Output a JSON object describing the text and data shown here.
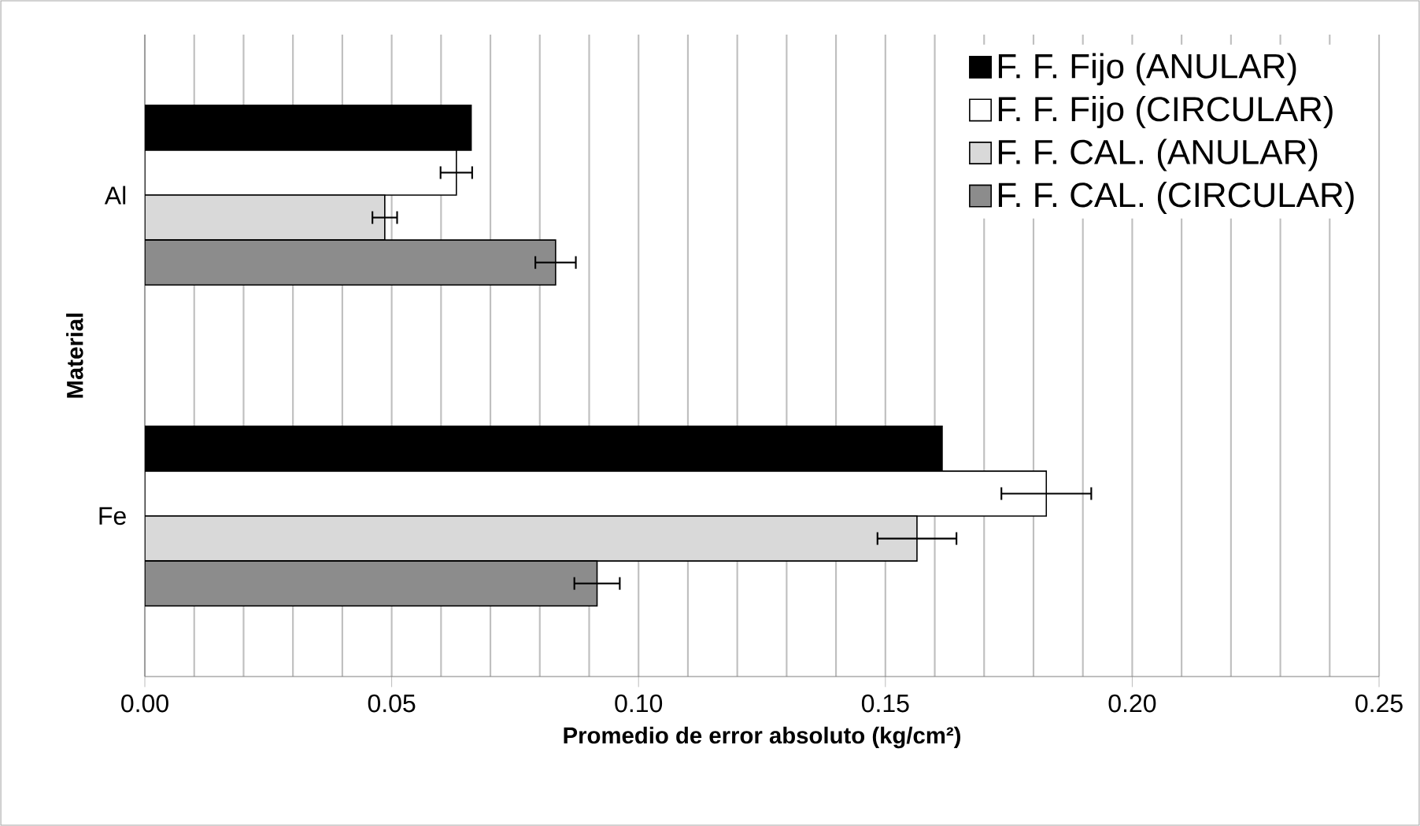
{
  "chart_data": {
    "type": "bar",
    "orientation": "horizontal",
    "xlabel": "Promedio de error absoluto (kg/cm²)",
    "ylabel": "Material",
    "categories": [
      "Al",
      "Fe"
    ],
    "series": [
      {
        "name": "F. F. Fijo (ANULAR)",
        "color": "#000000",
        "values": [
          0.0661,
          0.1615
        ]
      },
      {
        "name": "F. F. Fijo (CIRCULAR)",
        "color": "#ffffff",
        "values": [
          0.0631,
          0.1826
        ],
        "errors": [
          0.0032,
          0.0091
        ]
      },
      {
        "name": "F. F. CAL. (ANULAR)",
        "color": "#d9d9d9",
        "values": [
          0.0486,
          0.1564
        ],
        "errors": [
          0.0025,
          0.008
        ]
      },
      {
        "name": "F. F. CAL. (CIRCULAR)",
        "color": "#8c8c8c",
        "values": [
          0.0832,
          0.0916
        ],
        "errors": [
          0.0041,
          0.0046
        ]
      }
    ],
    "xlim": [
      0,
      0.25
    ],
    "xticks": [
      {
        "value": 0,
        "label": "0.00"
      },
      {
        "value": 0.05,
        "label": "0.05"
      },
      {
        "value": 0.1,
        "label": "0.10"
      },
      {
        "value": 0.15,
        "label": "0.15"
      },
      {
        "value": 0.2,
        "label": "0.20"
      },
      {
        "value": 0.25,
        "label": "0.25"
      }
    ],
    "grid": "x",
    "legend": "top right"
  }
}
